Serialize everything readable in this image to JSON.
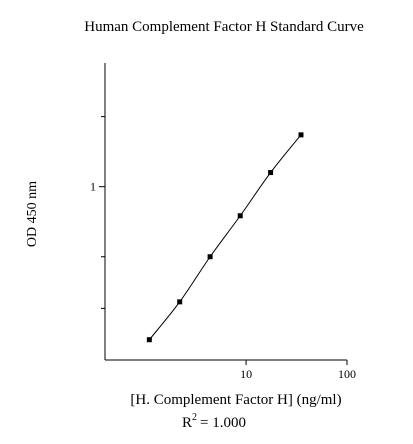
{
  "chart_data": {
    "type": "scatter",
    "title": "Human Complement Factor H Standard Curve",
    "xlabel": "[H. Complement Factor H] (ng/ml)",
    "ylabel": "OD 450 nm",
    "x_scale": "log",
    "y_scale": "log",
    "xlim": [
      0.4,
      100
    ],
    "ylim": [
      0.18,
      3.4
    ],
    "x_ticks": [
      10,
      100
    ],
    "x_tick_labels": [
      "10",
      "100"
    ],
    "y_ticks": [
      1
    ],
    "y_tick_labels": [
      "1"
    ],
    "y_minor_ticks": [
      0.3,
      0.5,
      2
    ],
    "grid": false,
    "fit_curve": true,
    "r_squared": {
      "label": "R",
      "exponent": "2",
      "value": "= 1.000"
    },
    "series": [
      {
        "x": [
          1.1,
          2.2,
          4.4,
          8.75,
          17.5,
          35
        ],
        "y": [
          0.22,
          0.32,
          0.5,
          0.75,
          1.15,
          1.67
        ]
      }
    ]
  }
}
